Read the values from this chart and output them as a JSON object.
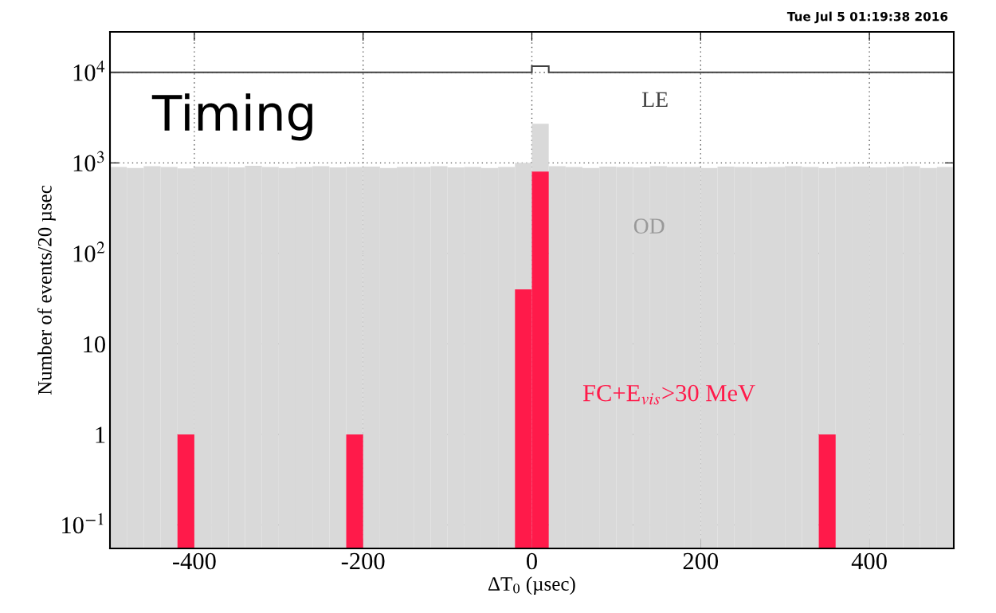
{
  "chart_data": {
    "type": "histogram",
    "xlabel": "ΔT$_{0}$ (µsec)",
    "ylabel": "Number of events/20 µsec",
    "annotations": [
      "Tue Jul 5 01:19:38 2016",
      "Timing"
    ],
    "bins": [
      -500,
      -480,
      -460,
      -440,
      -420,
      -400,
      -380,
      -360,
      -340,
      -320,
      -300,
      -280,
      -260,
      -240,
      -220,
      -200,
      -180,
      -160,
      -140,
      -120,
      -100,
      -80,
      -60,
      -40,
      -20,
      0,
      20,
      40,
      60,
      80,
      100,
      120,
      140,
      160,
      180,
      200,
      220,
      240,
      260,
      280,
      300,
      320,
      340,
      360,
      380,
      400,
      420,
      440,
      460,
      480,
      500
    ],
    "series": [
      {
        "name": "LE",
        "color": "#404040",
        "values": [
          10000,
          10000,
          10000,
          10000,
          10000,
          10000,
          10000,
          10000,
          10000,
          10000,
          10000,
          10000,
          10000,
          10000,
          10000,
          10000,
          10000,
          10000,
          10000,
          10000,
          10000,
          10000,
          10000,
          10000,
          10000,
          11700,
          10000,
          10000,
          10000,
          10000,
          10000,
          10000,
          10000,
          10000,
          10000,
          10000,
          10000,
          10000,
          10000,
          10000,
          10000,
          10000,
          10000,
          10000,
          10000,
          10000,
          10000,
          10000,
          10000,
          10000
        ]
      },
      {
        "name": "OD",
        "color": "#d9d9d9",
        "values": [
          900,
          880,
          920,
          900,
          870,
          910,
          900,
          890,
          930,
          900,
          880,
          900,
          920,
          890,
          900,
          910,
          880,
          900,
          900,
          920,
          890,
          900,
          880,
          900,
          1000,
          2700,
          920,
          900,
          880,
          910,
          900,
          890,
          920,
          900,
          900,
          880,
          910,
          900,
          890,
          900,
          920,
          900,
          880,
          900,
          910,
          890,
          900,
          920,
          880,
          900
        ]
      },
      {
        "name": "FC+E$_{vis}$>30 MeV",
        "color": "#ff1a4a",
        "values": [
          null,
          null,
          null,
          null,
          1,
          null,
          null,
          null,
          null,
          null,
          null,
          null,
          null,
          null,
          1,
          null,
          null,
          null,
          null,
          null,
          null,
          null,
          null,
          null,
          40,
          800,
          null,
          null,
          null,
          null,
          null,
          null,
          null,
          null,
          null,
          null,
          null,
          null,
          null,
          null,
          null,
          null,
          1,
          null,
          null,
          null,
          null,
          null,
          null,
          null
        ]
      }
    ],
    "log": "y",
    "xlim": [
      -500,
      500
    ],
    "xticks": [
      -400,
      -200,
      0,
      200,
      400
    ],
    "ylim": [
      0.055,
      28000
    ],
    "yticks": [
      {
        "value": 0.1,
        "label": "10$^{−1}$"
      },
      1,
      10,
      {
        "value": 100,
        "label": "10$^{2}$"
      },
      {
        "value": 1000,
        "label": "10$^{3}$"
      },
      {
        "value": 10000,
        "label": "10$^{4}$"
      }
    ],
    "grid": true
  }
}
